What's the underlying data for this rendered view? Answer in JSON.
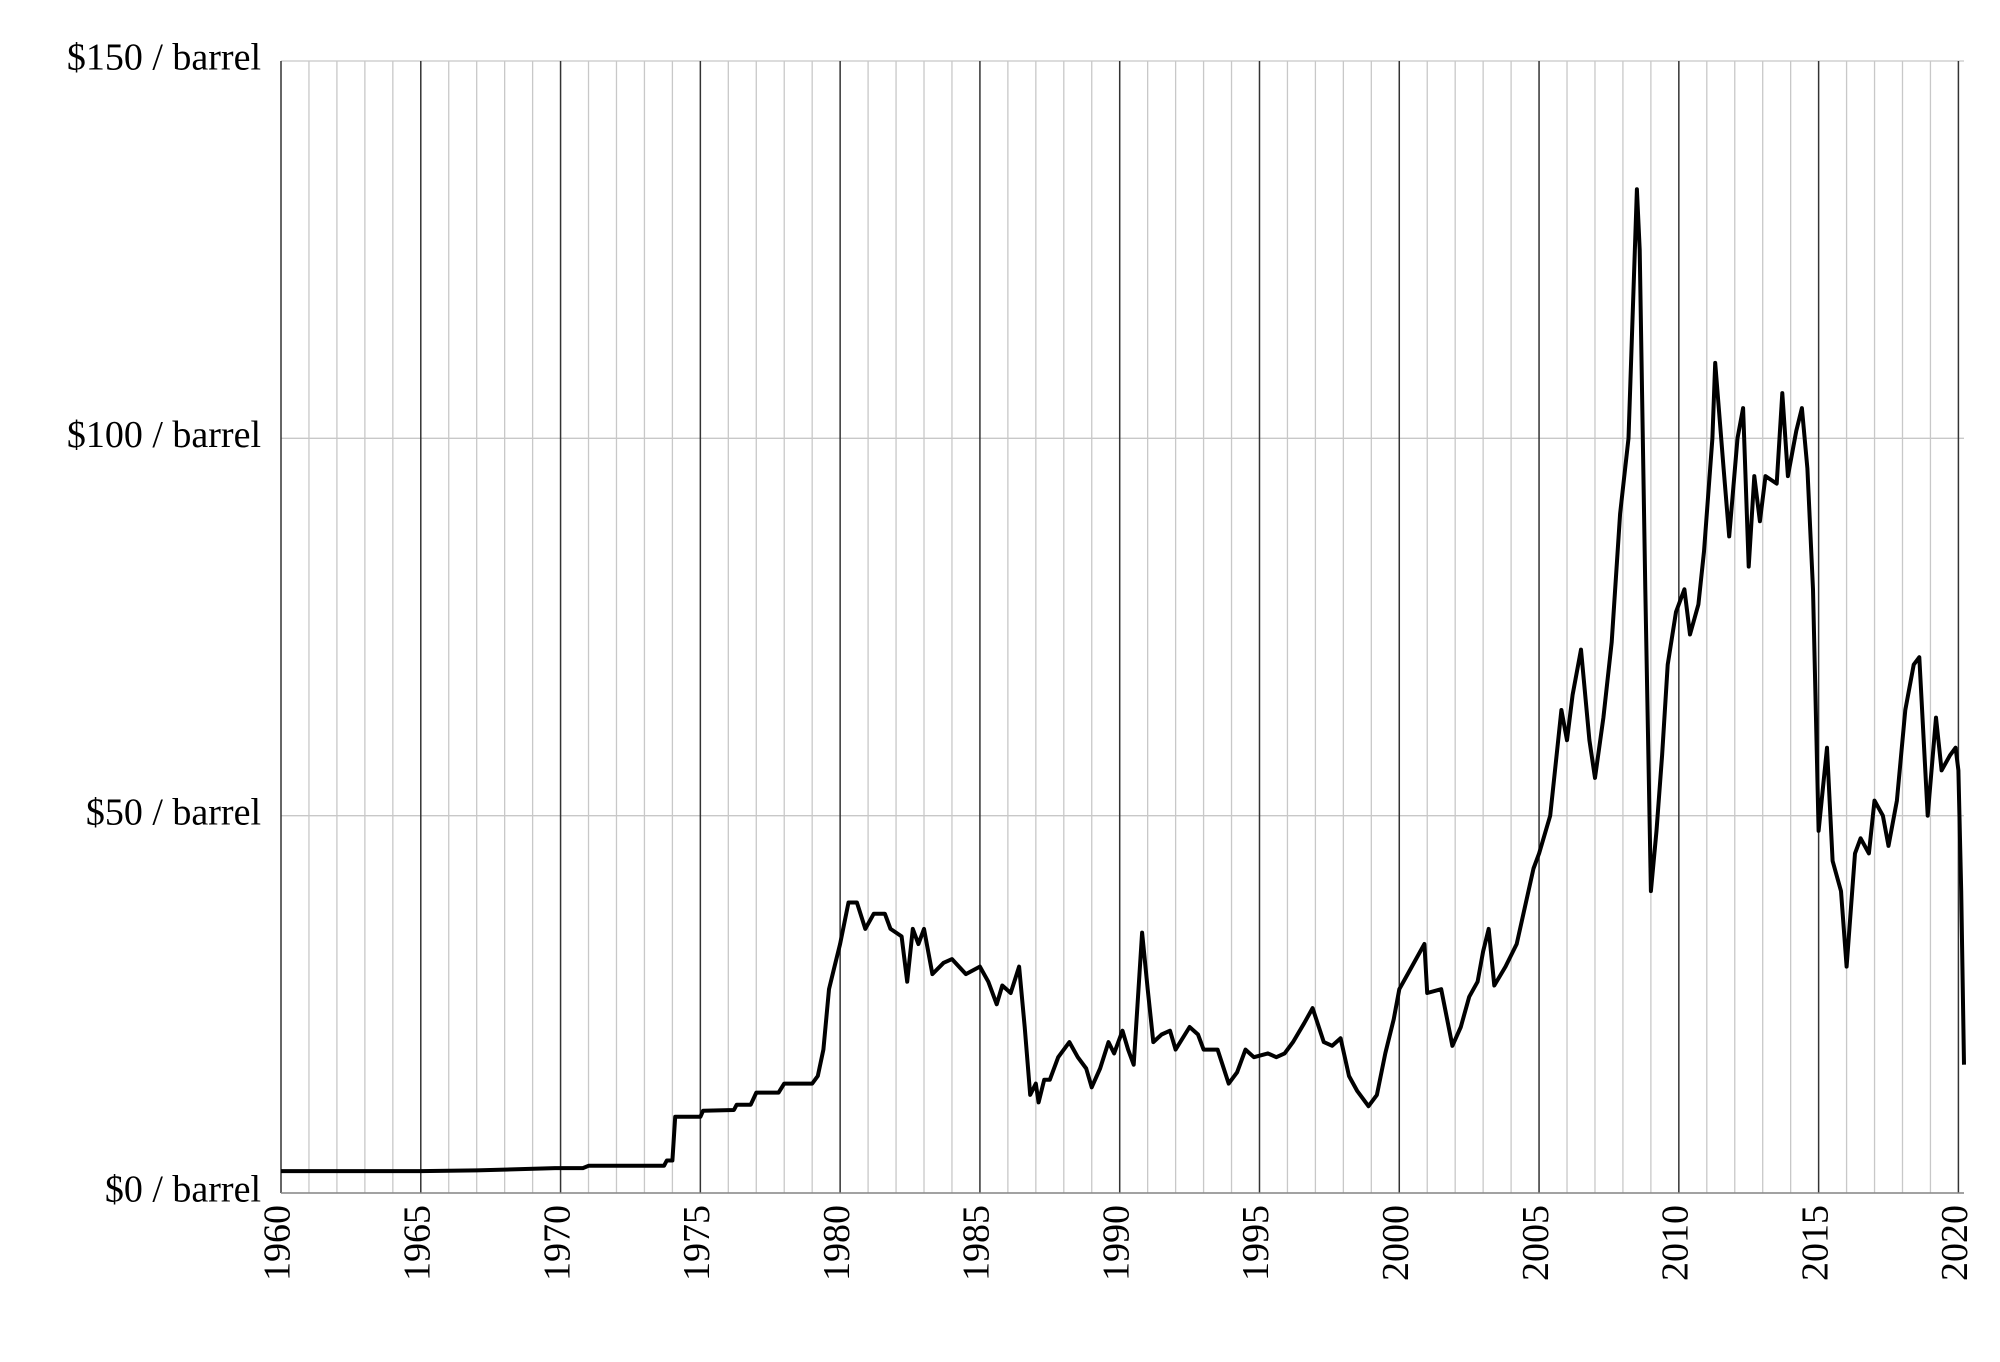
{
  "chart_data": {
    "type": "line",
    "xlim": [
      1960,
      2020.2
    ],
    "xticks": [
      1960,
      1965,
      1970,
      1975,
      1980,
      1985,
      1990,
      1995,
      2000,
      2005,
      2010,
      2015,
      2020
    ],
    "minor_xticks": [
      1961,
      1962,
      1963,
      1964,
      1966,
      1967,
      1968,
      1969,
      1971,
      1972,
      1973,
      1974,
      1976,
      1977,
      1978,
      1979,
      1981,
      1982,
      1983,
      1984,
      1986,
      1987,
      1988,
      1989,
      1991,
      1992,
      1993,
      1994,
      1996,
      1997,
      1998,
      1999,
      2001,
      2002,
      2003,
      2004,
      2006,
      2007,
      2008,
      2009,
      2011,
      2012,
      2013,
      2014,
      2016,
      2017,
      2018,
      2019
    ],
    "ylim": [
      0,
      150
    ],
    "yticks": [
      {
        "value": 0,
        "label": "$0 / barrel"
      },
      {
        "value": 50,
        "label": "$50 / barrel"
      },
      {
        "value": 100,
        "label": "$100 / barrel"
      },
      {
        "value": 150,
        "label": "$150 / barrel"
      }
    ],
    "grid": true,
    "series": [
      {
        "color": "#000000",
        "x": [
          1960,
          1965,
          1967,
          1969.8,
          1970.8,
          1971,
          1973.7,
          1973.8,
          1974.0,
          1974.1,
          1975.0,
          1975.1,
          1976.2,
          1976.3,
          1976.8,
          1977,
          1977.8,
          1978,
          1979,
          1979.2,
          1979.4,
          1979.6,
          1979.8,
          1980,
          1980.3,
          1980.6,
          1980.9,
          1981.2,
          1981.6,
          1981.8,
          1982.2,
          1982.4,
          1982.6,
          1982.8,
          1983,
          1983.3,
          1983.7,
          1984,
          1984.5,
          1985,
          1985.3,
          1985.6,
          1985.8,
          1986.1,
          1986.4,
          1986.6,
          1986.8,
          1987,
          1987.1,
          1987.3,
          1987.5,
          1987.8,
          1988.2,
          1988.5,
          1988.8,
          1989,
          1989.3,
          1989.6,
          1989.8,
          1990.1,
          1990.3,
          1990.5,
          1990.8,
          1991,
          1991.2,
          1991.5,
          1991.8,
          1992,
          1992.5,
          1992.8,
          1993,
          1993.5,
          1993.9,
          1994.2,
          1994.5,
          1994.8,
          1995.3,
          1995.6,
          1995.9,
          1996.2,
          1996.6,
          1996.9,
          1997.3,
          1997.6,
          1997.9,
          1998.2,
          1998.5,
          1998.9,
          1999.2,
          1999.5,
          1999.8,
          2000,
          2000.3,
          2000.6,
          2000.9,
          2001,
          2001.5,
          2001.9,
          2002.2,
          2002.5,
          2002.8,
          2003,
          2003.2,
          2003.4,
          2003.8,
          2004.2,
          2004.5,
          2004.8,
          2005,
          2005.4,
          2005.6,
          2005.8,
          2006,
          2006.2,
          2006.5,
          2006.8,
          2007,
          2007.3,
          2007.6,
          2007.9,
          2008.2,
          2008.5,
          2008.6,
          2008.8,
          2009,
          2009.2,
          2009.4,
          2009.6,
          2009.9,
          2010.2,
          2010.4,
          2010.7,
          2010.9,
          2011.2,
          2011.3,
          2011.6,
          2011.8,
          2012.1,
          2012.3,
          2012.5,
          2012.7,
          2012.9,
          2013.1,
          2013.5,
          2013.7,
          2013.9,
          2014.2,
          2014.4,
          2014.6,
          2014.8,
          2015.0,
          2015.3,
          2015.5,
          2015.8,
          2016.0,
          2016.3,
          2016.5,
          2016.8,
          2017.0,
          2017.3,
          2017.5,
          2017.8,
          2018.1,
          2018.4,
          2018.6,
          2018.9,
          2019.2,
          2019.4,
          2019.7,
          2019.9,
          2020.0,
          2020.1,
          2020.2
        ],
        "values": [
          2.9,
          2.9,
          3.0,
          3.3,
          3.3,
          3.6,
          3.6,
          4.3,
          4.3,
          10.1,
          10.1,
          10.9,
          11.0,
          11.7,
          11.7,
          13.3,
          13.3,
          14.5,
          14.5,
          15.5,
          19,
          27,
          30,
          33,
          38.5,
          38.5,
          35,
          37,
          37,
          35,
          34,
          28,
          35,
          33,
          35,
          29,
          30.5,
          31,
          29,
          30,
          28,
          25,
          27.5,
          26.5,
          30,
          22,
          13,
          14.5,
          12,
          15,
          15,
          18,
          20,
          18,
          16.5,
          14,
          16.5,
          20,
          18.5,
          21.5,
          19,
          17,
          34.5,
          27,
          20,
          21,
          21.5,
          19,
          22,
          21,
          19,
          19,
          14.5,
          16,
          19,
          18,
          18.5,
          18,
          18.5,
          20,
          22.5,
          24.5,
          20,
          19.5,
          20.5,
          15.5,
          13.5,
          11.5,
          13,
          18.5,
          23,
          27,
          29,
          31,
          33,
          26.5,
          27,
          19.5,
          22,
          26,
          28,
          32,
          35,
          27.5,
          30,
          33,
          38,
          43,
          45,
          50,
          57,
          64,
          60,
          66,
          72,
          60,
          55,
          63,
          73,
          90,
          100,
          133,
          125,
          80,
          40,
          48,
          58,
          70,
          77,
          80,
          74,
          78,
          85,
          100,
          110,
          96,
          87,
          100,
          104,
          83,
          95,
          89,
          95,
          94,
          106,
          95,
          101,
          104,
          96,
          80,
          48,
          59,
          44,
          40,
          30,
          45,
          47,
          45,
          52,
          50,
          46,
          52,
          64,
          70,
          71,
          50,
          63,
          56,
          58,
          59,
          56,
          40,
          17
        ]
      }
    ]
  }
}
